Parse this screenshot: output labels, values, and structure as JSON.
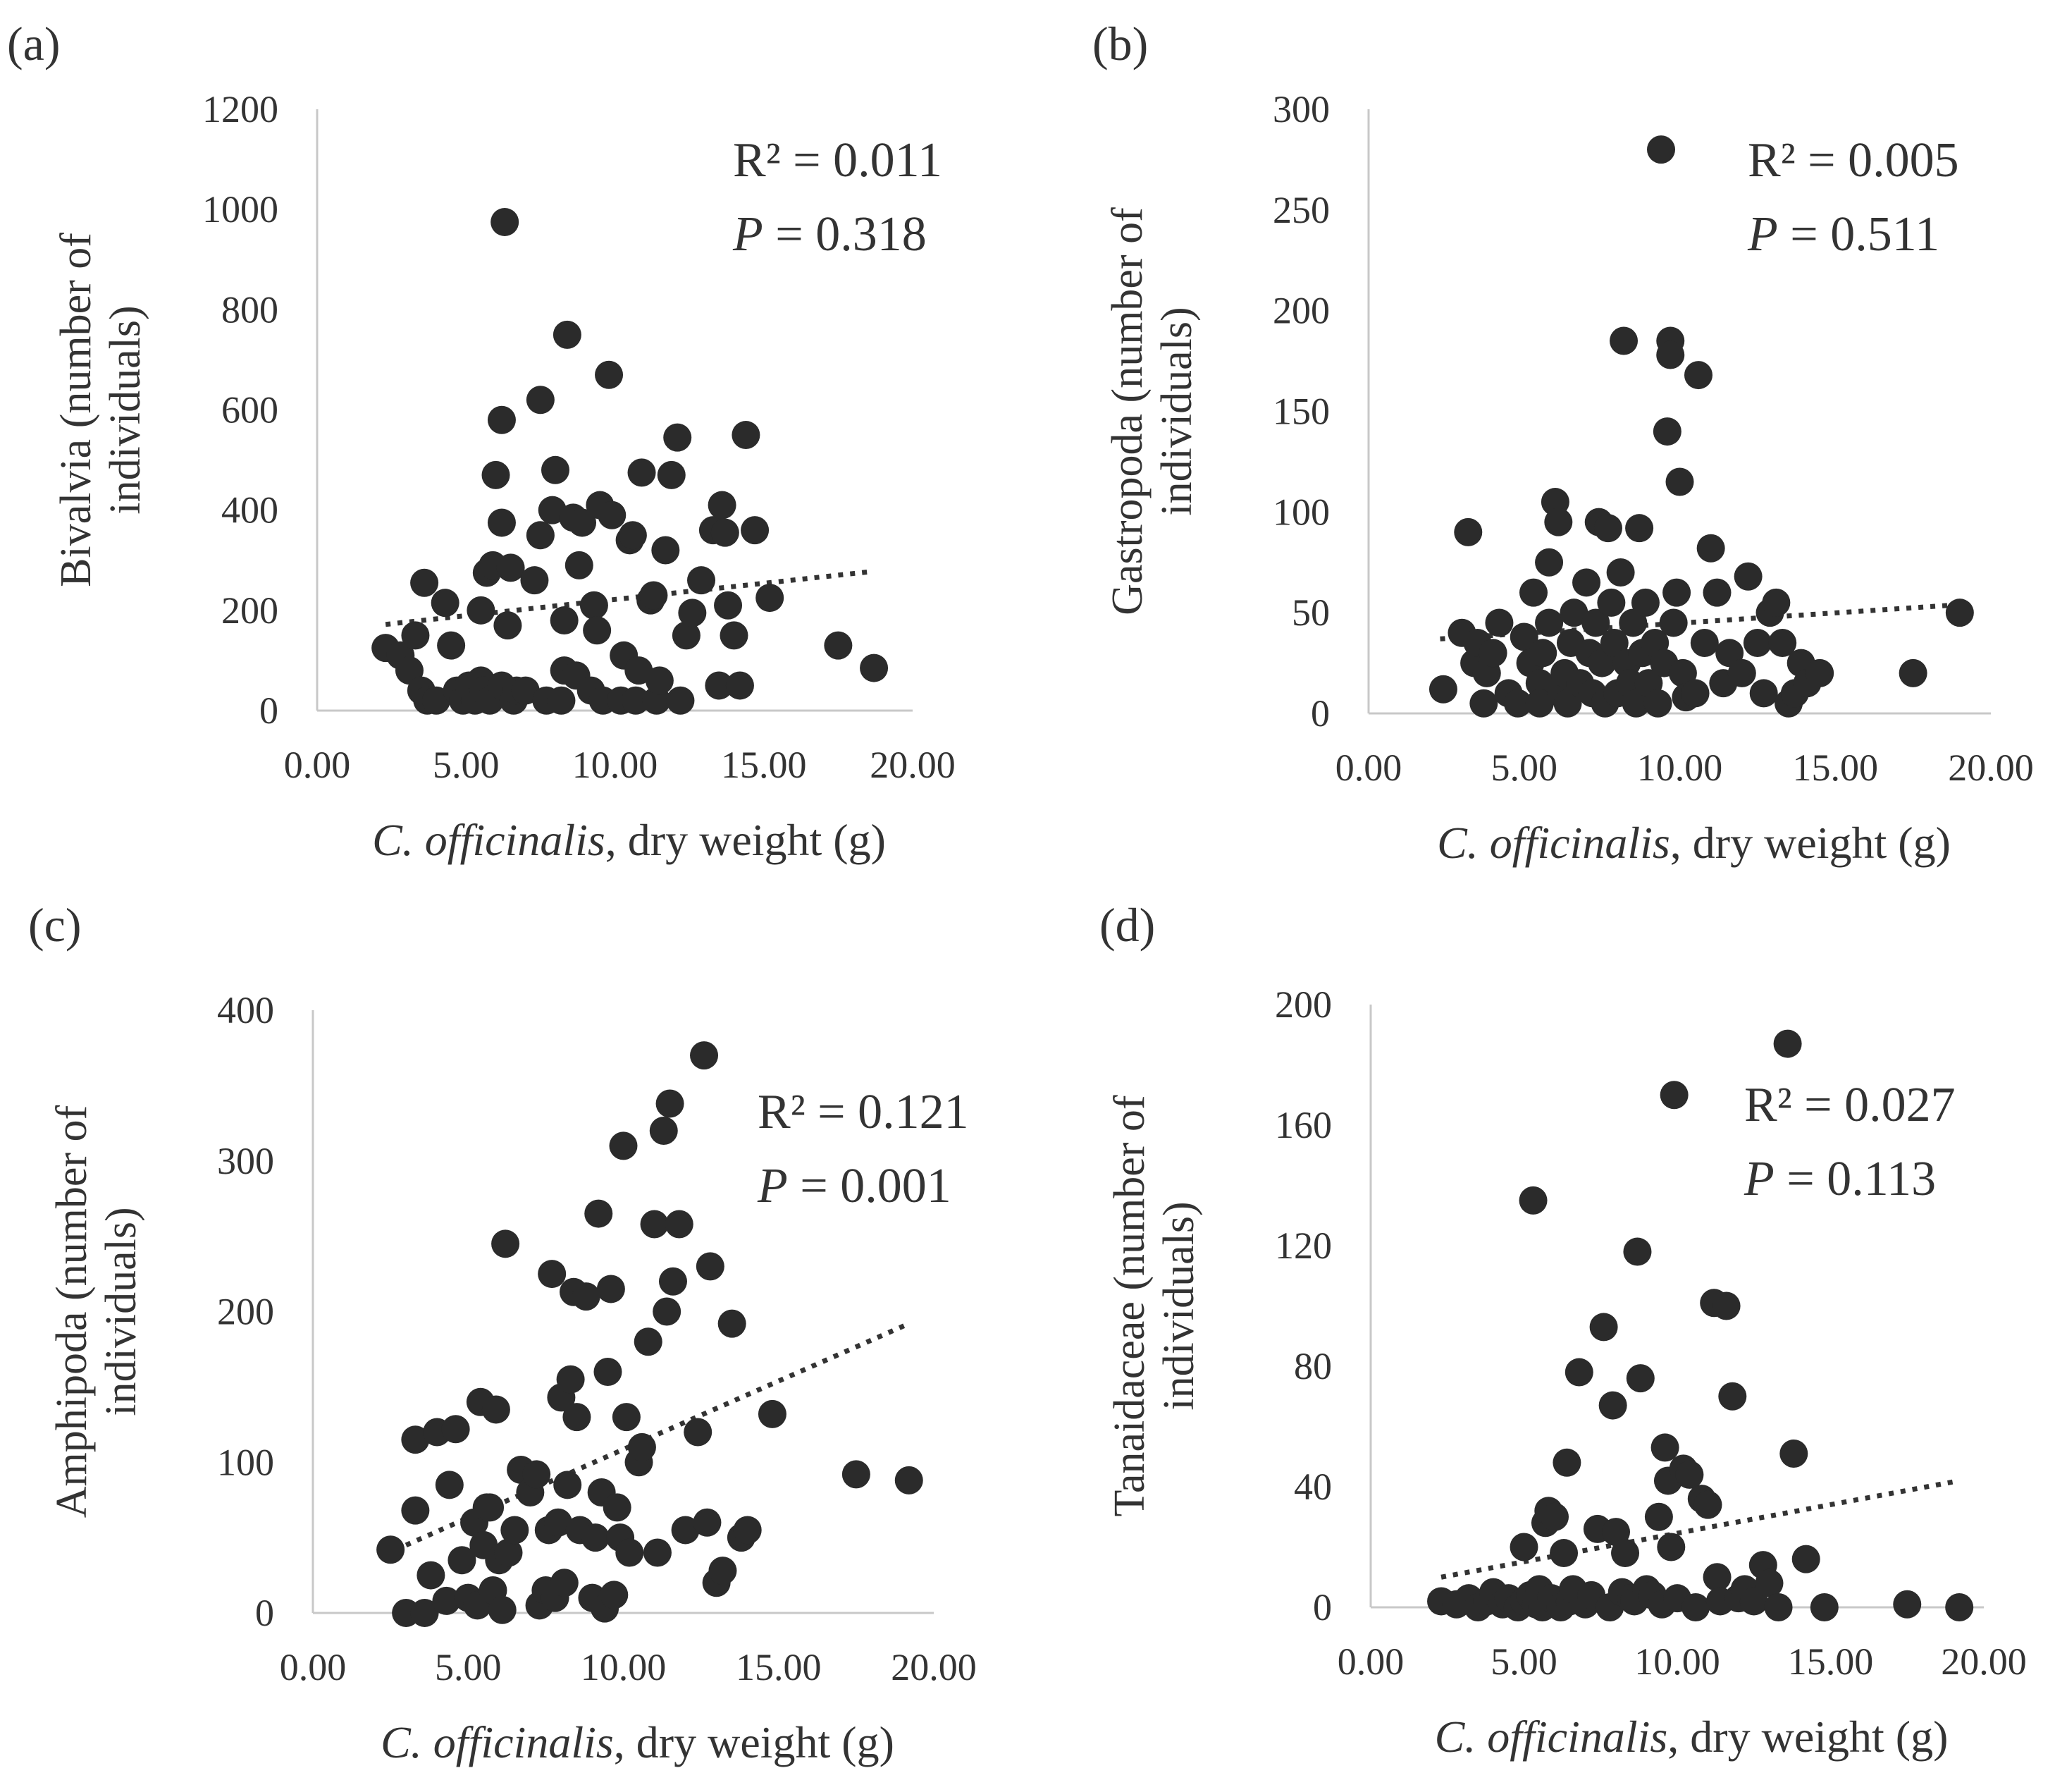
{
  "chart_data": [
    {
      "panel": "(a)",
      "type": "scatter",
      "ylabel_lines": [
        "Bivalvia (number of",
        "individuals)"
      ],
      "xlabel_italic": "C. officinalis",
      "xlabel_rest": ", dry weight (g)",
      "xlim": [
        0,
        20
      ],
      "ylim": [
        0,
        1200
      ],
      "xticks": [
        "0.00",
        "5.00",
        "10.00",
        "15.00",
        "20.00"
      ],
      "yticks": [
        "0",
        "200",
        "400",
        "600",
        "800",
        "1000",
        "1200"
      ],
      "r2_text": "R² = 0.011",
      "p_italic": "P",
      "p_rest": " = 0.318",
      "trend": {
        "x": [
          2.3,
          18.7
        ],
        "y": [
          172,
          278
        ]
      },
      "points": [
        [
          2.3,
          125
        ],
        [
          2.8,
          110
        ],
        [
          3.1,
          80
        ],
        [
          3.3,
          150
        ],
        [
          3.5,
          40
        ],
        [
          3.7,
          20
        ],
        [
          3.6,
          255
        ],
        [
          4.0,
          20
        ],
        [
          4.3,
          215
        ],
        [
          4.5,
          130
        ],
        [
          4.7,
          40
        ],
        [
          4.9,
          20
        ],
        [
          5.1,
          50
        ],
        [
          5.3,
          20
        ],
        [
          5.5,
          60
        ],
        [
          5.5,
          200
        ],
        [
          5.6,
          40
        ],
        [
          5.7,
          275
        ],
        [
          5.8,
          20
        ],
        [
          5.9,
          290
        ],
        [
          6.0,
          470
        ],
        [
          6.2,
          580
        ],
        [
          6.2,
          375
        ],
        [
          6.2,
          50
        ],
        [
          6.3,
          975
        ],
        [
          6.4,
          170
        ],
        [
          6.5,
          285
        ],
        [
          6.6,
          20
        ],
        [
          6.7,
          40
        ],
        [
          7.0,
          40
        ],
        [
          7.3,
          260
        ],
        [
          7.5,
          620
        ],
        [
          7.5,
          350
        ],
        [
          7.7,
          20
        ],
        [
          7.9,
          400
        ],
        [
          8.0,
          480
        ],
        [
          8.2,
          20
        ],
        [
          8.3,
          80
        ],
        [
          8.3,
          180
        ],
        [
          8.4,
          750
        ],
        [
          8.6,
          385
        ],
        [
          8.7,
          70
        ],
        [
          8.8,
          290
        ],
        [
          8.9,
          375
        ],
        [
          9.2,
          40
        ],
        [
          9.3,
          210
        ],
        [
          9.4,
          160
        ],
        [
          9.5,
          410
        ],
        [
          9.6,
          20
        ],
        [
          9.8,
          670
        ],
        [
          9.9,
          390
        ],
        [
          10.2,
          20
        ],
        [
          10.3,
          110
        ],
        [
          10.5,
          340
        ],
        [
          10.6,
          350
        ],
        [
          10.7,
          20
        ],
        [
          10.8,
          80
        ],
        [
          10.9,
          475
        ],
        [
          11.2,
          220
        ],
        [
          11.3,
          230
        ],
        [
          11.4,
          20
        ],
        [
          11.5,
          60
        ],
        [
          11.7,
          320
        ],
        [
          11.9,
          470
        ],
        [
          12.1,
          545
        ],
        [
          12.2,
          20
        ],
        [
          12.4,
          150
        ],
        [
          12.6,
          195
        ],
        [
          12.9,
          260
        ],
        [
          13.3,
          360
        ],
        [
          13.5,
          50
        ],
        [
          13.6,
          410
        ],
        [
          13.7,
          355
        ],
        [
          13.8,
          210
        ],
        [
          14.0,
          150
        ],
        [
          14.2,
          50
        ],
        [
          14.4,
          550
        ],
        [
          14.7,
          360
        ],
        [
          15.2,
          225
        ],
        [
          17.5,
          130
        ],
        [
          18.7,
          85
        ]
      ]
    },
    {
      "panel": "(b)",
      "type": "scatter",
      "ylabel_lines": [
        "Gastropoda (number of",
        "individuals)"
      ],
      "xlabel_italic": "C. officinalis",
      "xlabel_rest": ", dry weight (g)",
      "xlim": [
        0,
        20
      ],
      "ylim": [
        0,
        300
      ],
      "xticks": [
        "0.00",
        "5.00",
        "10.00",
        "15.00",
        "20.00"
      ],
      "yticks": [
        "0",
        "50",
        "100",
        "150",
        "200",
        "250",
        "300"
      ],
      "r2_text": "R² = 0.005",
      "p_italic": "P",
      "p_rest": " = 0.511",
      "trend": {
        "x": [
          2.3,
          19.0
        ],
        "y": [
          37,
          54
        ]
      },
      "points": [
        [
          2.4,
          12
        ],
        [
          3.0,
          40
        ],
        [
          3.2,
          90
        ],
        [
          3.4,
          25
        ],
        [
          3.5,
          35
        ],
        [
          3.7,
          5
        ],
        [
          3.8,
          20
        ],
        [
          4.0,
          30
        ],
        [
          4.2,
          45
        ],
        [
          4.5,
          10
        ],
        [
          4.8,
          5
        ],
        [
          5.0,
          38
        ],
        [
          5.2,
          25
        ],
        [
          5.3,
          60
        ],
        [
          5.5,
          15
        ],
        [
          5.5,
          5
        ],
        [
          5.6,
          30
        ],
        [
          5.8,
          75
        ],
        [
          5.8,
          45
        ],
        [
          6.0,
          105
        ],
        [
          6.1,
          95
        ],
        [
          6.2,
          10
        ],
        [
          6.3,
          20
        ],
        [
          6.4,
          5
        ],
        [
          6.5,
          35
        ],
        [
          6.6,
          50
        ],
        [
          6.8,
          15
        ],
        [
          7.0,
          65
        ],
        [
          7.1,
          30
        ],
        [
          7.2,
          10
        ],
        [
          7.3,
          45
        ],
        [
          7.4,
          95
        ],
        [
          7.5,
          25
        ],
        [
          7.6,
          5
        ],
        [
          7.7,
          92
        ],
        [
          7.8,
          55
        ],
        [
          7.9,
          35
        ],
        [
          8.0,
          10
        ],
        [
          8.1,
          70
        ],
        [
          8.2,
          185
        ],
        [
          8.3,
          25
        ],
        [
          8.4,
          15
        ],
        [
          8.5,
          45
        ],
        [
          8.6,
          5
        ],
        [
          8.7,
          92
        ],
        [
          8.8,
          30
        ],
        [
          8.9,
          55
        ],
        [
          9.0,
          15
        ],
        [
          9.2,
          35
        ],
        [
          9.3,
          5
        ],
        [
          9.4,
          280
        ],
        [
          9.5,
          25
        ],
        [
          9.6,
          140
        ],
        [
          9.7,
          185
        ],
        [
          9.7,
          178
        ],
        [
          9.8,
          45
        ],
        [
          9.9,
          60
        ],
        [
          10.0,
          115
        ],
        [
          10.1,
          20
        ],
        [
          10.2,
          8
        ],
        [
          10.5,
          10
        ],
        [
          10.6,
          168
        ],
        [
          10.8,
          35
        ],
        [
          11.0,
          82
        ],
        [
          11.2,
          60
        ],
        [
          11.4,
          15
        ],
        [
          11.6,
          30
        ],
        [
          12.0,
          20
        ],
        [
          12.2,
          68
        ],
        [
          12.5,
          35
        ],
        [
          12.7,
          10
        ],
        [
          12.9,
          50
        ],
        [
          13.1,
          55
        ],
        [
          13.3,
          35
        ],
        [
          13.5,
          5
        ],
        [
          13.7,
          10
        ],
        [
          13.9,
          25
        ],
        [
          14.1,
          15
        ],
        [
          14.5,
          20
        ],
        [
          17.5,
          20
        ],
        [
          19.0,
          50
        ]
      ]
    },
    {
      "panel": "(c)",
      "type": "scatter",
      "ylabel_lines": [
        "Amphipoda (number of",
        "individuals)"
      ],
      "xlabel_italic": "C. officinalis",
      "xlabel_rest": ", dry weight (g)",
      "xlim": [
        0,
        20
      ],
      "ylim": [
        0,
        400
      ],
      "xticks": [
        "0.00",
        "5.00",
        "10.00",
        "15.00",
        "20.00"
      ],
      "yticks": [
        "0",
        "100",
        "200",
        "300",
        "400"
      ],
      "r2_text": "R² = 0.121",
      "p_italic": "P",
      "p_rest": " = 0.001",
      "trend": {
        "x": [
          3.0,
          19.2
        ],
        "y": [
          45,
          192
        ]
      },
      "points": [
        [
          2.5,
          42
        ],
        [
          3.0,
          0
        ],
        [
          3.3,
          115
        ],
        [
          3.3,
          68
        ],
        [
          3.6,
          0
        ],
        [
          3.8,
          25
        ],
        [
          4.0,
          120
        ],
        [
          4.3,
          8
        ],
        [
          4.4,
          85
        ],
        [
          4.6,
          122
        ],
        [
          4.8,
          35
        ],
        [
          5.0,
          10
        ],
        [
          5.2,
          60
        ],
        [
          5.3,
          5
        ],
        [
          5.4,
          140
        ],
        [
          5.5,
          45
        ],
        [
          5.6,
          70
        ],
        [
          5.7,
          70
        ],
        [
          5.8,
          15
        ],
        [
          5.9,
          135
        ],
        [
          6.0,
          35
        ],
        [
          6.1,
          2
        ],
        [
          6.2,
          245
        ],
        [
          6.3,
          40
        ],
        [
          6.5,
          55
        ],
        [
          6.7,
          95
        ],
        [
          7.0,
          80
        ],
        [
          7.2,
          92
        ],
        [
          7.3,
          5
        ],
        [
          7.5,
          15
        ],
        [
          7.6,
          55
        ],
        [
          7.7,
          225
        ],
        [
          7.8,
          10
        ],
        [
          7.9,
          60
        ],
        [
          8.0,
          143
        ],
        [
          8.1,
          20
        ],
        [
          8.2,
          85
        ],
        [
          8.3,
          155
        ],
        [
          8.4,
          213
        ],
        [
          8.5,
          130
        ],
        [
          8.6,
          55
        ],
        [
          8.8,
          210
        ],
        [
          9.0,
          10
        ],
        [
          9.1,
          50
        ],
        [
          9.2,
          265
        ],
        [
          9.3,
          80
        ],
        [
          9.4,
          3
        ],
        [
          9.5,
          160
        ],
        [
          9.6,
          215
        ],
        [
          9.7,
          12
        ],
        [
          9.8,
          70
        ],
        [
          9.9,
          50
        ],
        [
          10.0,
          310
        ],
        [
          10.1,
          130
        ],
        [
          10.2,
          40
        ],
        [
          10.5,
          100
        ],
        [
          10.6,
          110
        ],
        [
          10.8,
          180
        ],
        [
          11.0,
          258
        ],
        [
          11.1,
          40
        ],
        [
          11.3,
          320
        ],
        [
          11.4,
          200
        ],
        [
          11.5,
          338
        ],
        [
          11.6,
          220
        ],
        [
          11.8,
          258
        ],
        [
          12.0,
          55
        ],
        [
          12.4,
          120
        ],
        [
          12.6,
          370
        ],
        [
          12.7,
          60
        ],
        [
          12.8,
          230
        ],
        [
          13.0,
          20
        ],
        [
          13.2,
          28
        ],
        [
          13.5,
          192
        ],
        [
          13.8,
          50
        ],
        [
          14.0,
          55
        ],
        [
          14.8,
          132
        ],
        [
          17.5,
          92
        ],
        [
          19.2,
          88
        ]
      ]
    },
    {
      "panel": "(d)",
      "type": "scatter",
      "ylabel_lines": [
        "Tanaidaceae (number of",
        "individuals)"
      ],
      "xlabel_italic": "C. officinalis",
      "xlabel_rest": ", dry weight (g)",
      "xlim": [
        0,
        20
      ],
      "ylim": [
        0,
        200
      ],
      "xticks": [
        "0.00",
        "5.00",
        "10.00",
        "15.00",
        "20.00"
      ],
      "yticks": [
        "0",
        "40",
        "80",
        "120",
        "160",
        "200"
      ],
      "r2_text": "R² = 0.027",
      "p_italic": "P",
      "p_rest": " = 0.113",
      "trend": {
        "x": [
          2.3,
          19.2
        ],
        "y": [
          10,
          42
        ]
      },
      "points": [
        [
          2.3,
          2
        ],
        [
          2.8,
          1
        ],
        [
          3.2,
          3
        ],
        [
          3.5,
          0
        ],
        [
          3.8,
          2
        ],
        [
          4.0,
          5
        ],
        [
          4.3,
          1
        ],
        [
          4.5,
          3
        ],
        [
          4.8,
          0
        ],
        [
          5.0,
          2
        ],
        [
          5.0,
          20
        ],
        [
          5.2,
          4
        ],
        [
          5.3,
          135
        ],
        [
          5.4,
          1
        ],
        [
          5.5,
          6
        ],
        [
          5.6,
          0
        ],
        [
          5.7,
          28
        ],
        [
          5.8,
          32
        ],
        [
          5.9,
          3
        ],
        [
          6.0,
          30
        ],
        [
          6.2,
          0
        ],
        [
          6.3,
          18
        ],
        [
          6.4,
          48
        ],
        [
          6.5,
          2
        ],
        [
          6.6,
          6
        ],
        [
          6.8,
          78
        ],
        [
          7.0,
          1
        ],
        [
          7.2,
          4
        ],
        [
          7.4,
          26
        ],
        [
          7.6,
          93
        ],
        [
          7.8,
          0
        ],
        [
          7.9,
          67
        ],
        [
          8.0,
          25
        ],
        [
          8.2,
          5
        ],
        [
          8.3,
          18
        ],
        [
          8.5,
          3
        ],
        [
          8.6,
          2
        ],
        [
          8.7,
          118
        ],
        [
          8.8,
          76
        ],
        [
          9.0,
          6
        ],
        [
          9.2,
          4
        ],
        [
          9.4,
          30
        ],
        [
          9.5,
          1
        ],
        [
          9.6,
          53
        ],
        [
          9.7,
          42
        ],
        [
          9.8,
          20
        ],
        [
          9.9,
          170
        ],
        [
          10.0,
          3
        ],
        [
          10.2,
          46
        ],
        [
          10.4,
          44
        ],
        [
          10.6,
          0
        ],
        [
          10.8,
          36
        ],
        [
          11.0,
          34
        ],
        [
          11.2,
          101
        ],
        [
          11.3,
          10
        ],
        [
          11.4,
          2
        ],
        [
          11.6,
          100
        ],
        [
          11.8,
          70
        ],
        [
          12.0,
          3
        ],
        [
          12.2,
          6
        ],
        [
          12.5,
          2
        ],
        [
          12.8,
          14
        ],
        [
          13.0,
          8
        ],
        [
          13.3,
          0
        ],
        [
          13.6,
          187
        ],
        [
          13.8,
          51
        ],
        [
          14.2,
          16
        ],
        [
          14.8,
          0
        ],
        [
          17.5,
          1
        ],
        [
          19.2,
          0
        ]
      ]
    }
  ]
}
